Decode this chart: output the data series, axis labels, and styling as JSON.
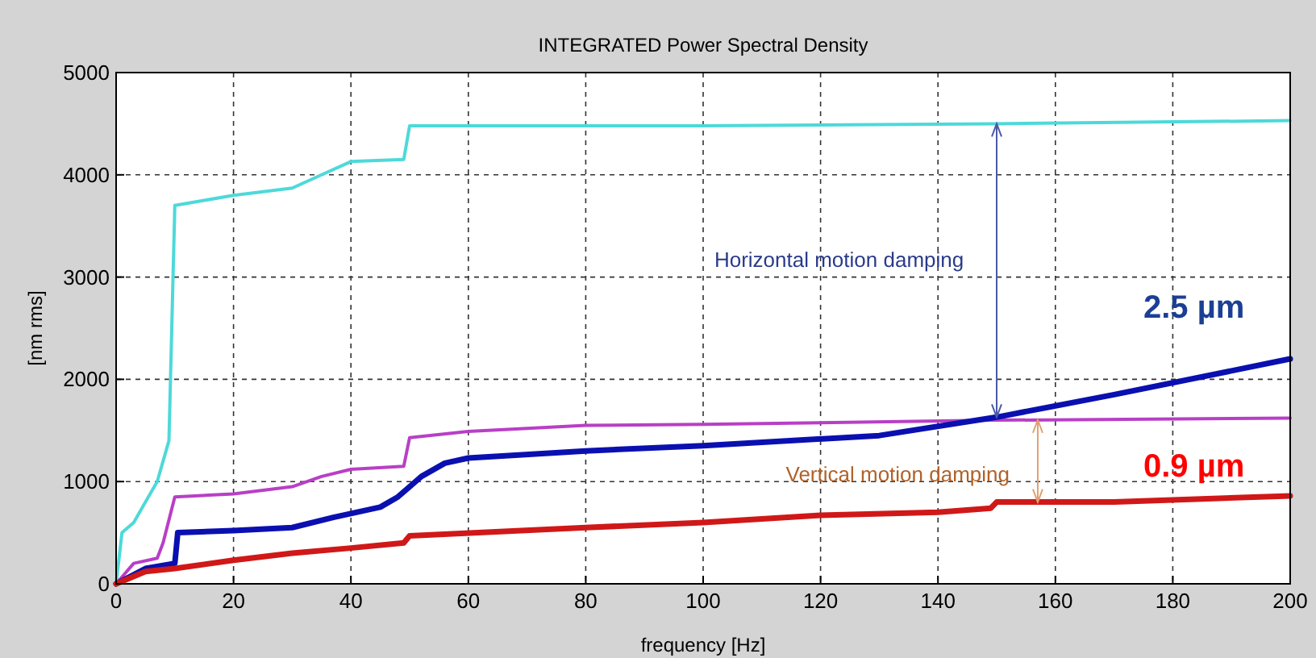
{
  "chart_data": {
    "type": "line",
    "title": "INTEGRATED Power Spectral Density",
    "xlabel": "frequency [Hz]",
    "ylabel": "[nm rms]",
    "xlim": [
      0,
      200
    ],
    "ylim": [
      0,
      5000
    ],
    "xticks": [
      0,
      20,
      40,
      60,
      80,
      100,
      120,
      140,
      160,
      180,
      200
    ],
    "yticks": [
      0,
      1000,
      2000,
      3000,
      4000,
      5000
    ],
    "grid": true,
    "series": [
      {
        "color": "#4dd9d9",
        "x": [
          0,
          1,
          3,
          5,
          7,
          8,
          9,
          10,
          15,
          20,
          30,
          35,
          40,
          49,
          50,
          100,
          150,
          200
        ],
        "values": [
          0,
          500,
          600,
          800,
          1000,
          1200,
          1400,
          3700,
          3750,
          3800,
          3870,
          4000,
          4130,
          4150,
          4480,
          4480,
          4500,
          4530
        ]
      },
      {
        "color": "#b83fc6",
        "x": [
          0,
          3,
          7,
          8,
          10,
          20,
          30,
          35,
          40,
          49,
          50,
          60,
          80,
          100,
          150,
          200
        ],
        "values": [
          0,
          200,
          250,
          400,
          850,
          880,
          950,
          1050,
          1120,
          1150,
          1430,
          1490,
          1550,
          1560,
          1600,
          1620
        ]
      },
      {
        "color": "#0a10b0",
        "x": [
          0,
          5,
          10,
          10.5,
          20,
          30,
          37,
          45,
          48,
          52,
          56,
          60,
          80,
          100,
          130,
          150,
          170,
          200
        ],
        "values": [
          0,
          150,
          200,
          500,
          520,
          550,
          650,
          750,
          850,
          1050,
          1180,
          1230,
          1300,
          1350,
          1450,
          1630,
          1850,
          2200
        ]
      },
      {
        "color": "#d01818",
        "x": [
          0,
          5,
          10,
          20,
          30,
          40,
          49,
          50,
          80,
          100,
          120,
          140,
          149,
          150,
          170,
          200
        ],
        "values": [
          0,
          120,
          150,
          230,
          300,
          350,
          400,
          470,
          550,
          600,
          670,
          700,
          740,
          800,
          800,
          860
        ]
      }
    ],
    "annotations": [
      "Horizontal motion damping",
      "Vertical motion damping",
      "2.5 µm",
      "0.9 µm"
    ]
  }
}
